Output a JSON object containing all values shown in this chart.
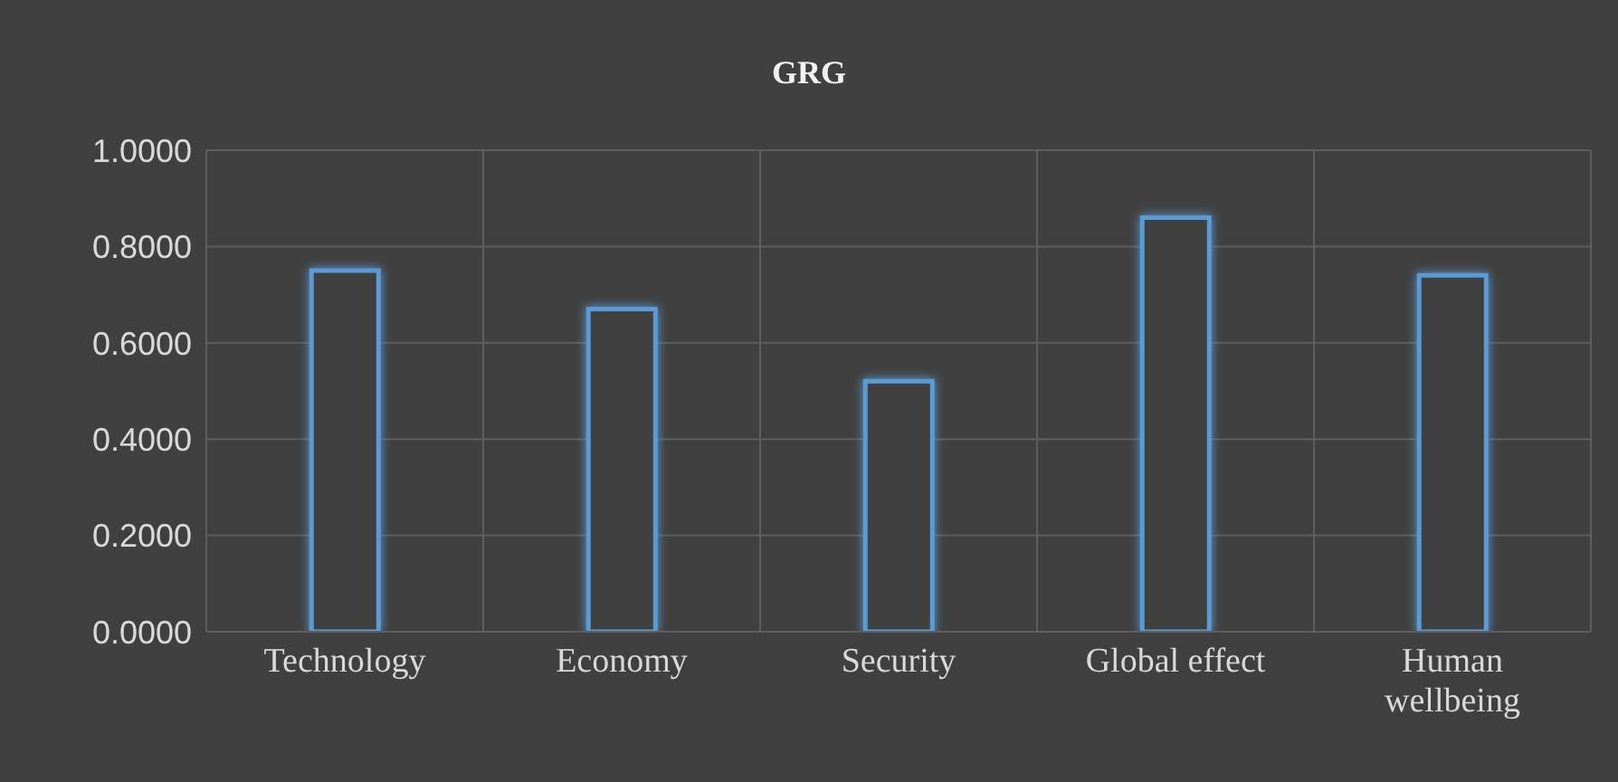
{
  "chart_data": {
    "type": "bar",
    "title": "GRG",
    "categories": [
      "Technology",
      "Economy",
      "Security",
      "Global effect",
      "Human wellbeing"
    ],
    "values": [
      0.75,
      0.67,
      0.52,
      0.86,
      0.74
    ],
    "color": "#5b9bd5",
    "ylim": [
      0,
      1
    ],
    "yticks": [
      {
        "value": 0,
        "label": "0.0000"
      },
      {
        "value": 0.2,
        "label": "0.2000"
      },
      {
        "value": 0.4,
        "label": "0.4000"
      },
      {
        "value": 0.6,
        "label": "0.6000"
      },
      {
        "value": 0.8,
        "label": "0.8000"
      },
      {
        "value": 1,
        "label": "1.0000"
      }
    ],
    "grid": true
  }
}
